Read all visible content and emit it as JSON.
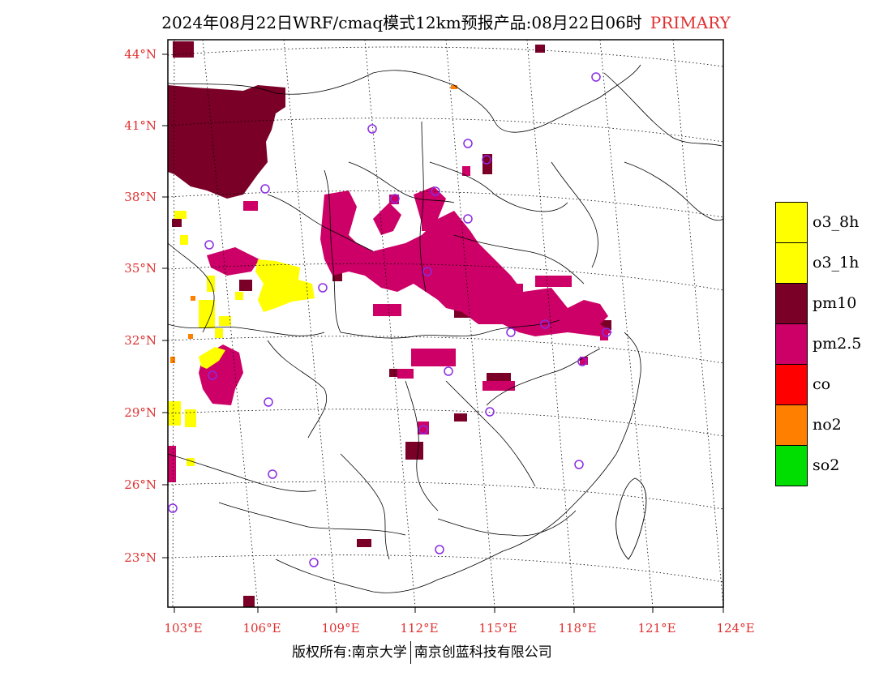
{
  "title": {
    "main": "2024年08月22日WRF/cmaq模式12km预报产品:08月22日06时",
    "tag": "PRIMARY"
  },
  "axes": {
    "lat_labels": [
      "44°N",
      "41°N",
      "38°N",
      "35°N",
      "32°N",
      "29°N",
      "26°N",
      "23°N"
    ],
    "lon_labels": [
      "103°E",
      "106°E",
      "109°E",
      "112°E",
      "115°E",
      "118°E",
      "121°E",
      "124°E"
    ]
  },
  "legend": {
    "items": [
      {
        "label": "o3_8h",
        "color": "#ffff00"
      },
      {
        "label": "o3_1h",
        "color": "#ffff00"
      },
      {
        "label": "pm10",
        "color": "#7a0028"
      },
      {
        "label": "pm2.5",
        "color": "#cc0066"
      },
      {
        "label": "co",
        "color": "#ff0000"
      },
      {
        "label": "no2",
        "color": "#ff8000"
      },
      {
        "label": "so2",
        "color": "#00dd00"
      }
    ]
  },
  "footer": {
    "left": "版权所有:南京大学",
    "right": "南京创蓝科技有限公司"
  },
  "colors": {
    "pm10": "#7a0028",
    "pm25": "#cc0066",
    "o3": "#ffff00",
    "no2": "#ff8000",
    "station": "#8a2be2",
    "axis_label": "#e03030"
  }
}
